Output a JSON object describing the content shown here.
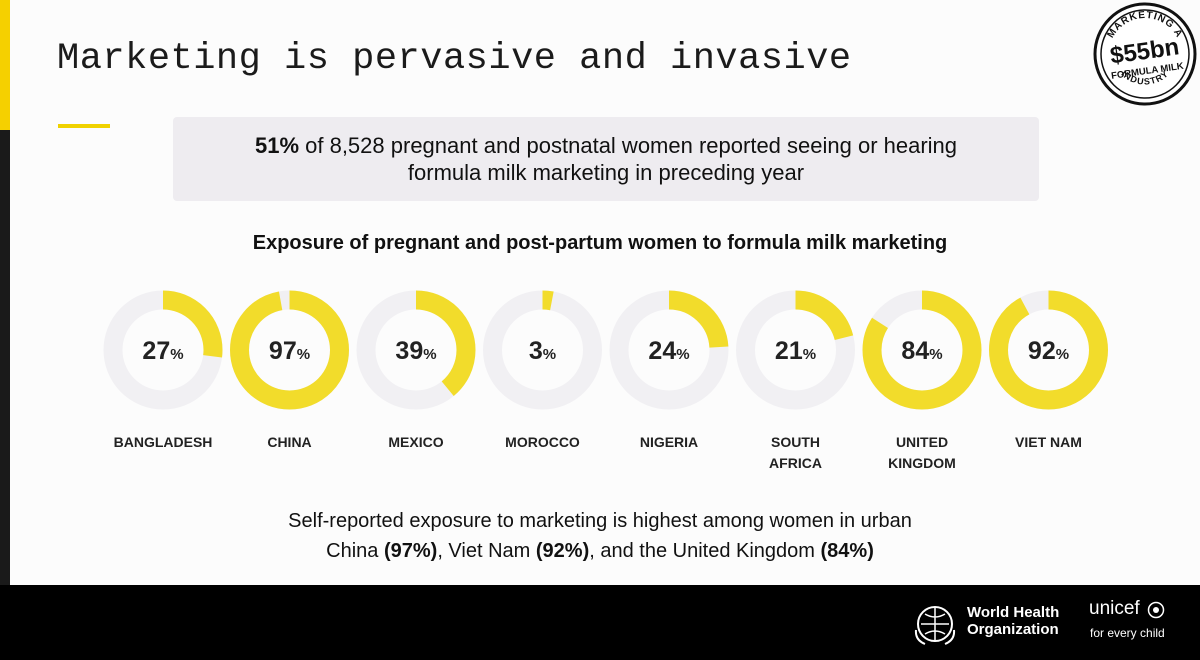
{
  "slide": {
    "title": "Marketing is pervasive and invasive",
    "callout_bold": "51%",
    "callout_line1": " of 8,528 pregnant and postnatal women reported seeing or hearing",
    "callout_line2": "formula milk marketing in preceding year",
    "footnote_line1": "Self-reported exposure to marketing is highest among women in urban",
    "footnote_line2_parts": [
      "China ",
      "(97%)",
      ", Viet Nam ",
      "(92%)",
      ", and the United Kingdom ",
      "(84%)"
    ]
  },
  "badge": {
    "top_text": "MARKETING A",
    "amount": "$55bn",
    "line2": "FORMULA MILK",
    "bottom_text": "INDUSTRY"
  },
  "logos": {
    "who_line1": "World Health",
    "who_line2": "Organization",
    "unicef": "unicef",
    "unicef_tagline": "for every child"
  },
  "colors": {
    "accent": "#f2dc2b",
    "ring_bg": "#f1f0f3"
  },
  "chart_data": {
    "type": "pie",
    "title": "Exposure of pregnant and post-partum women to formula milk marketing",
    "unit": "%",
    "categories": [
      [
        "BANGLADESH"
      ],
      [
        "CHINA"
      ],
      [
        "MEXICO"
      ],
      [
        "MOROCCO"
      ],
      [
        "NIGERIA"
      ],
      [
        "SOUTH",
        "AFRICA"
      ],
      [
        "UNITED",
        "KINGDOM"
      ],
      [
        "VIET NAM"
      ]
    ],
    "values": [
      27,
      97,
      39,
      3,
      24,
      21,
      84,
      92
    ]
  }
}
